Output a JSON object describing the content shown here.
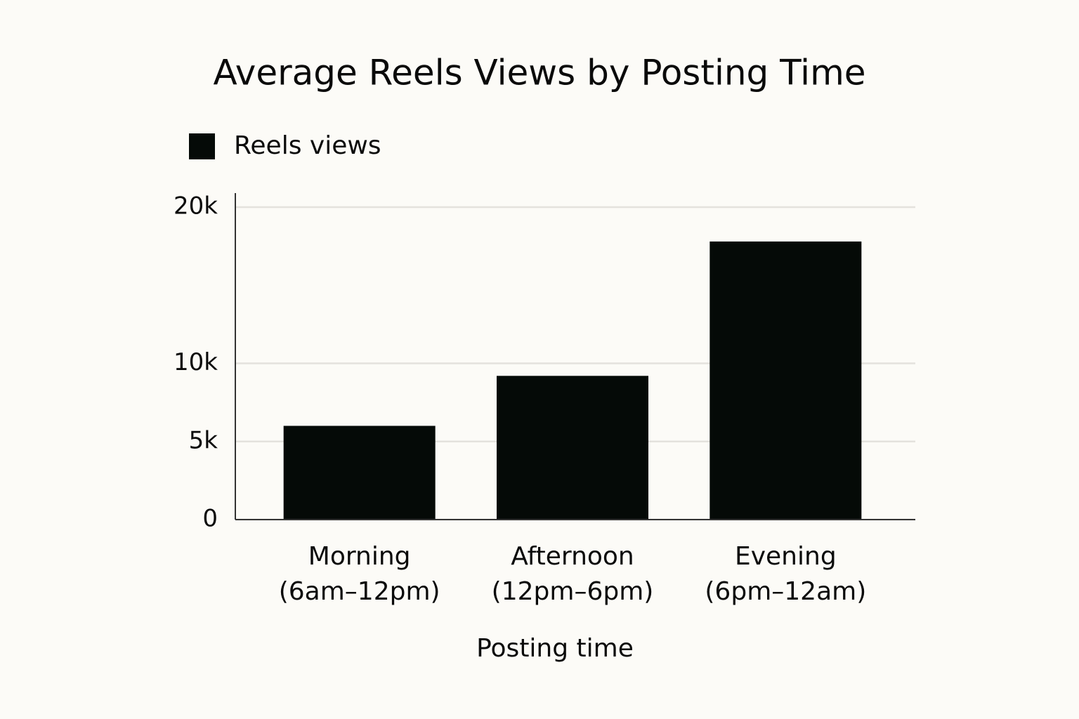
{
  "chart_data": {
    "type": "bar",
    "title": "Average Reels Views by Posting Time",
    "categories": [
      "Morning\n(6am–12pm)",
      "Afternoon\n(12pm–6pm)",
      "Evening\n(6pm–12am)"
    ],
    "series": [
      {
        "name": "Reels views",
        "color": "#050a07",
        "values": [
          6000,
          9200,
          17800
        ]
      }
    ],
    "x_label": "Posting time",
    "ylim": [
      0,
      20000
    ],
    "yticks": [
      0,
      {
        "value": 5000,
        "label": "5k"
      },
      {
        "value": 10000,
        "label": "10k"
      },
      {
        "value": 20000,
        "label": "20k"
      }
    ],
    "grid": true,
    "legend": "top-left"
  }
}
